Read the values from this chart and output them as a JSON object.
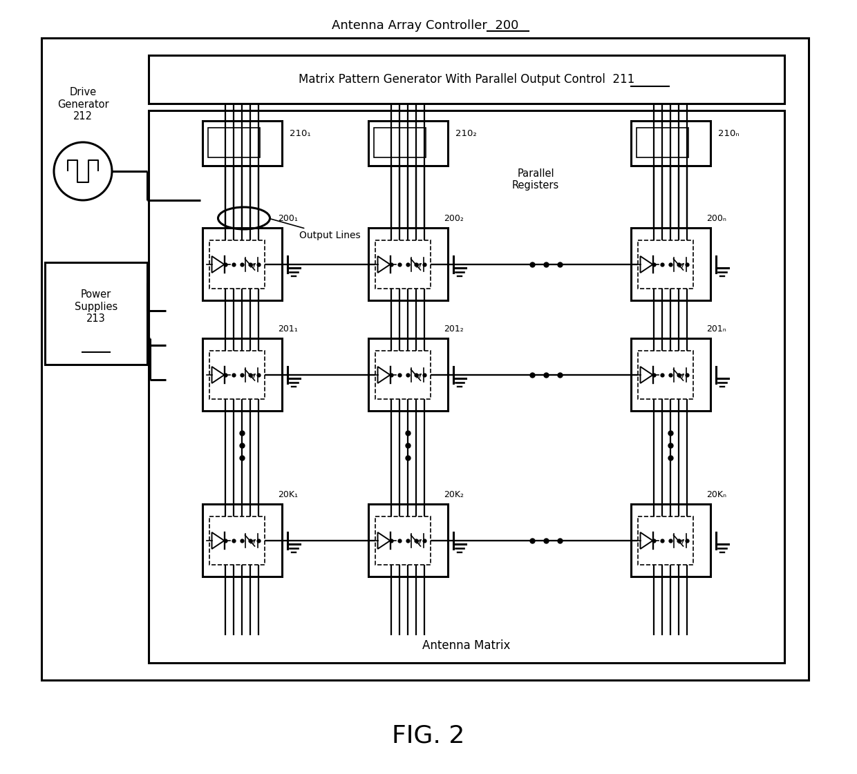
{
  "bg": "#ffffff",
  "outer_label": "Antenna Array Controller  200",
  "mpg_label": "Matrix Pattern Generator With Parallel Output Control  211",
  "drive_gen_label": "Drive\nGenerator\n212",
  "power_sup_label": "Power\nSupplies\n213",
  "antenna_matrix_label": "Antenna Matrix",
  "parallel_reg_label": "Parallel\nRegisters",
  "output_lines_label": "Output Lines",
  "reg_labels": [
    "210₁",
    "210₂",
    "210ₙ"
  ],
  "cell_labels_r1": [
    "200₁",
    "200₂",
    "200ₙ"
  ],
  "cell_labels_r2": [
    "201₁",
    "201₂",
    "201ₙ"
  ],
  "cell_labels_rk": [
    "20K₁",
    "20K₂",
    "20Kₙ"
  ],
  "fig_label": "FIG. 2",
  "lw_main": 2.2,
  "lw_bus": 1.8,
  "lw_thin": 1.2
}
